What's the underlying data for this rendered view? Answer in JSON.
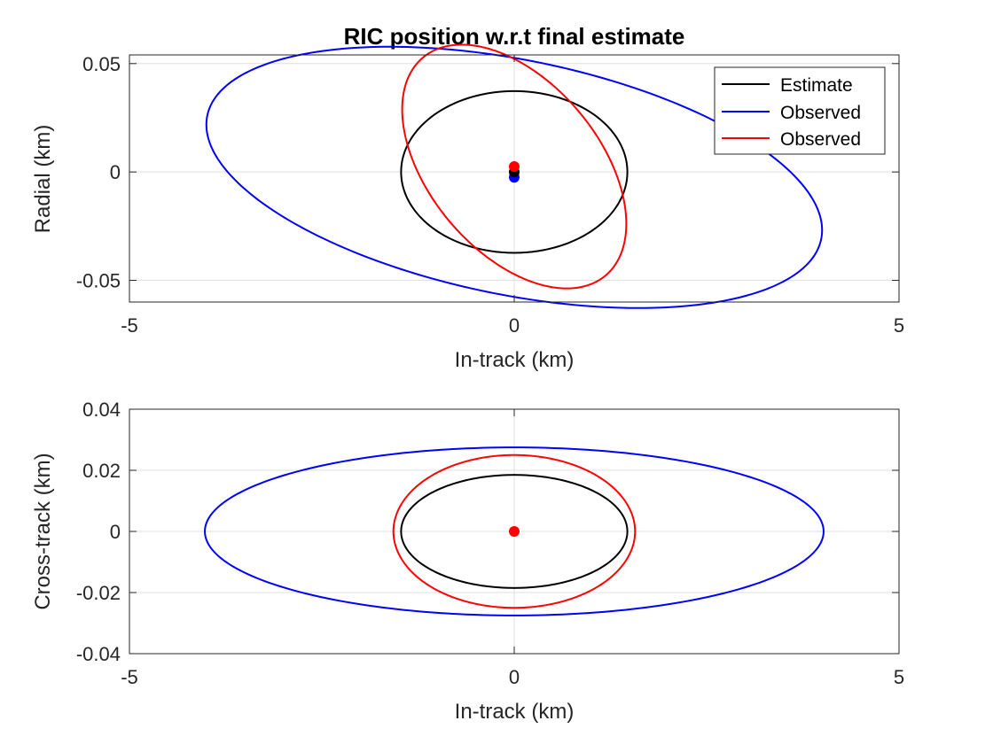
{
  "chart_data": [
    {
      "type": "line",
      "title": "RIC position w.r.t final estimate",
      "xlabel": "In-track (km)",
      "ylabel": "Radial (km)",
      "xlim": [
        -5,
        5
      ],
      "ylim": [
        -0.06,
        0.054
      ],
      "xticks": [
        -5,
        0,
        5
      ],
      "yticks": [
        -0.05,
        0,
        0.05
      ],
      "xtick_labels": [
        "-5",
        "0",
        "5"
      ],
      "ytick_labels": [
        "-0.05",
        "0",
        "0.05"
      ],
      "grid": true,
      "legend": {
        "placement": "top-right",
        "entries": [
          {
            "label": "Estimate",
            "color": "#000000"
          },
          {
            "label": "Observed",
            "color": "#0000ff"
          },
          {
            "label": "Observed",
            "color": "#ff0000"
          }
        ]
      },
      "series": [
        {
          "legend_label": "Estimate",
          "color": "#000000",
          "kind": "ellipse",
          "center": [
            0,
            0
          ],
          "axes_points": [
            [
              1.47,
              0
            ],
            [
              0,
              0.0373
            ]
          ]
        },
        {
          "legend_label": "Observed",
          "color": "#0000ff",
          "kind": "ellipse",
          "center": [
            0,
            -0.0025
          ],
          "axes_points": [
            [
              4.0,
              -0.0235
            ],
            [
              -0.06,
              0.0555
            ]
          ]
        },
        {
          "legend_label": "Observed",
          "color": "#ff0000",
          "kind": "ellipse",
          "center": [
            0,
            0.0025
          ],
          "axes_points": [
            [
              1.4,
              -0.039
            ],
            [
              0.4,
              0.0405
            ]
          ]
        }
      ],
      "points": [
        {
          "x": 0,
          "y": -0.0025,
          "color": "#0000ff"
        },
        {
          "x": 0,
          "y": 0.0,
          "color": "#000000"
        },
        {
          "x": 0,
          "y": 0.0025,
          "color": "#ff0000"
        }
      ]
    },
    {
      "type": "line",
      "xlabel": "In-track (km)",
      "ylabel": "Cross-track (km)",
      "xlim": [
        -5,
        5
      ],
      "ylim": [
        -0.04,
        0.04
      ],
      "xticks": [
        -5,
        0,
        5
      ],
      "yticks": [
        -0.04,
        -0.02,
        0,
        0.02,
        0.04
      ],
      "xtick_labels": [
        "-5",
        "0",
        "5"
      ],
      "ytick_labels": [
        "-0.04",
        "-0.02",
        "0",
        "0.02",
        "0.04"
      ],
      "grid": true,
      "series": [
        {
          "color": "#000000",
          "kind": "ellipse",
          "center": [
            0,
            0
          ],
          "axes_points": [
            [
              1.47,
              0
            ],
            [
              0,
              0.0185
            ]
          ]
        },
        {
          "color": "#0000ff",
          "kind": "ellipse",
          "center": [
            0,
            0
          ],
          "axes_points": [
            [
              4.02,
              0
            ],
            [
              0,
              0.0275
            ]
          ]
        },
        {
          "color": "#ff0000",
          "kind": "ellipse",
          "center": [
            0,
            0
          ],
          "axes_points": [
            [
              1.57,
              0
            ],
            [
              0,
              0.025
            ]
          ]
        }
      ],
      "points": [
        {
          "x": 0,
          "y": 0,
          "color": "#ff0000"
        }
      ]
    }
  ]
}
